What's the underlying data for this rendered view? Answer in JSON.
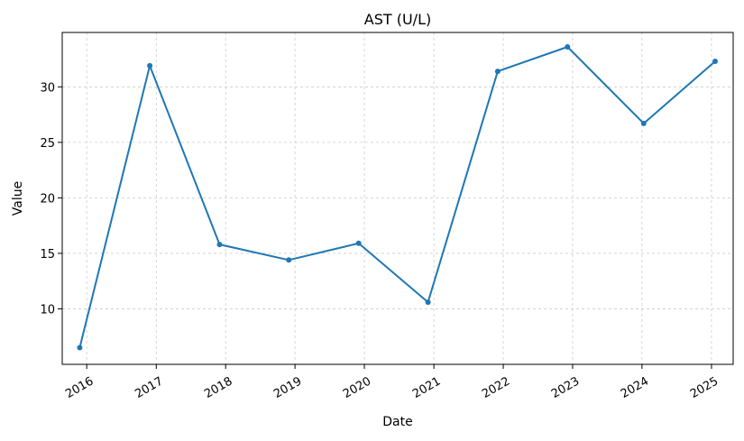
{
  "chart_data": {
    "type": "line",
    "title": "AST (U/L)",
    "xlabel": "Date",
    "ylabel": "Value",
    "x": [
      "2015-11-25",
      "2016-11-28",
      "2017-11-30",
      "2018-11-29",
      "2019-12-02",
      "2020-12-01",
      "2021-12-03",
      "2022-12-05",
      "2024-01-10",
      "2025-01-20"
    ],
    "series": [
      {
        "values": [
          6.5,
          31.9,
          15.8,
          14.4,
          15.9,
          10.6,
          31.4,
          33.6,
          26.7,
          32.3
        ]
      }
    ],
    "x_ticks": [
      "2016",
      "2017",
      "2018",
      "2019",
      "2020",
      "2021",
      "2022",
      "2023",
      "2024",
      "2025"
    ],
    "y_ticks": [
      10,
      15,
      20,
      25,
      30
    ],
    "xlim": [
      "2015-08-25",
      "2025-04-25"
    ],
    "ylim": [
      5.0,
      34.9
    ],
    "grid": true,
    "line_color": "#1f77b4"
  }
}
